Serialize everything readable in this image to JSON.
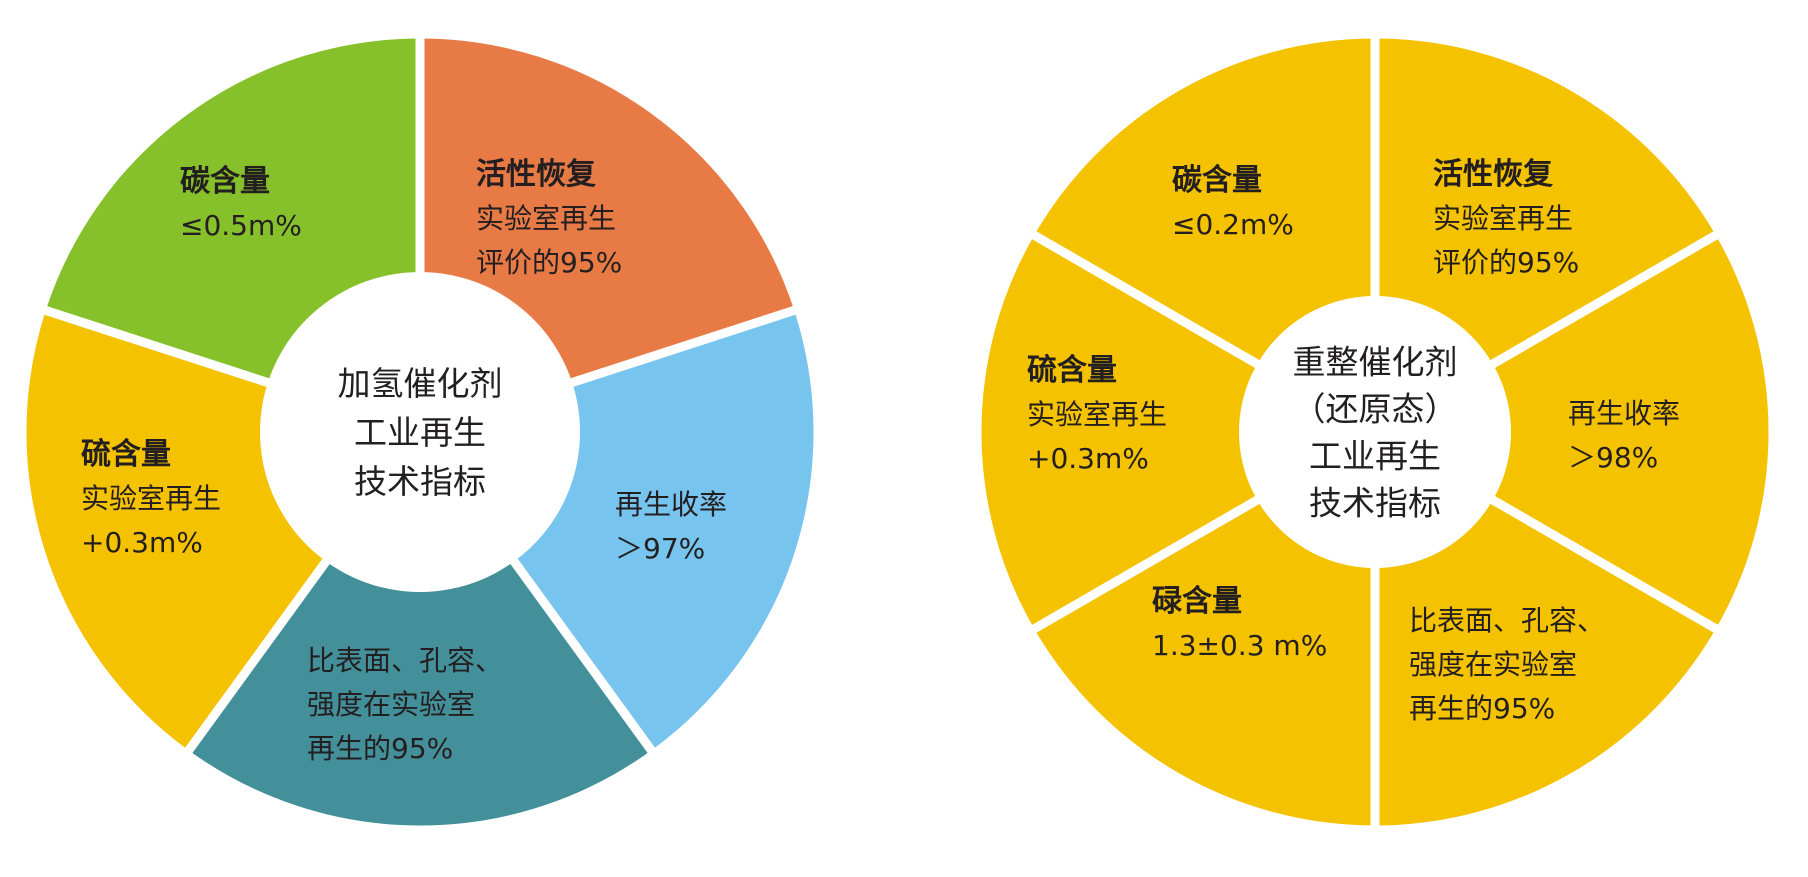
{
  "chart_data": [
    {
      "type": "pie",
      "variant": "donut",
      "center_label": [
        "加氢催化剂",
        "工业再生",
        "技术指标"
      ],
      "slices": [
        {
          "title": "活性恢复",
          "lines": [
            "实验室再生",
            "评价的95%"
          ],
          "value": 1,
          "color": "#e77a45"
        },
        {
          "title": "",
          "lines": [
            "再生收率",
            "＞97%"
          ],
          "value": 1,
          "color": "#77c4ee"
        },
        {
          "title": "",
          "lines": [
            "比表面、孔容、",
            "强度在实验室",
            "再生的95%"
          ],
          "value": 1,
          "color": "#44909a"
        },
        {
          "title": "硫含量",
          "lines": [
            "实验室再生",
            "+0.3m%"
          ],
          "value": 1,
          "color": "#f5c200"
        },
        {
          "title": "碳含量",
          "lines": [
            "≤0.5m%"
          ],
          "value": 1,
          "color": "#86c02a"
        }
      ]
    },
    {
      "type": "pie",
      "variant": "donut",
      "center_label": [
        "重整催化剂",
        "（还原态）",
        "工业再生",
        "技术指标"
      ],
      "slices": [
        {
          "title": "活性恢复",
          "lines": [
            "实验室再生",
            "评价的95%"
          ],
          "value": 1,
          "color": "#f5c200"
        },
        {
          "title": "",
          "lines": [
            "再生收率",
            "＞98%"
          ],
          "value": 1,
          "color": "#f5c200"
        },
        {
          "title": "",
          "lines": [
            "比表面、孔容、",
            "强度在实验室",
            "再生的95%"
          ],
          "value": 1,
          "color": "#f5c200"
        },
        {
          "title": "碌含量",
          "lines": [
            "1.3±0.3 m%"
          ],
          "value": 1,
          "color": "#f5c200"
        },
        {
          "title": "硫含量",
          "lines": [
            "实验室再生",
            "+0.3m%"
          ],
          "value": 1,
          "color": "#f5c200"
        },
        {
          "title": "碳含量",
          "lines": [
            "≤0.2m%"
          ],
          "value": 1,
          "color": "#f5c200"
        }
      ]
    }
  ]
}
